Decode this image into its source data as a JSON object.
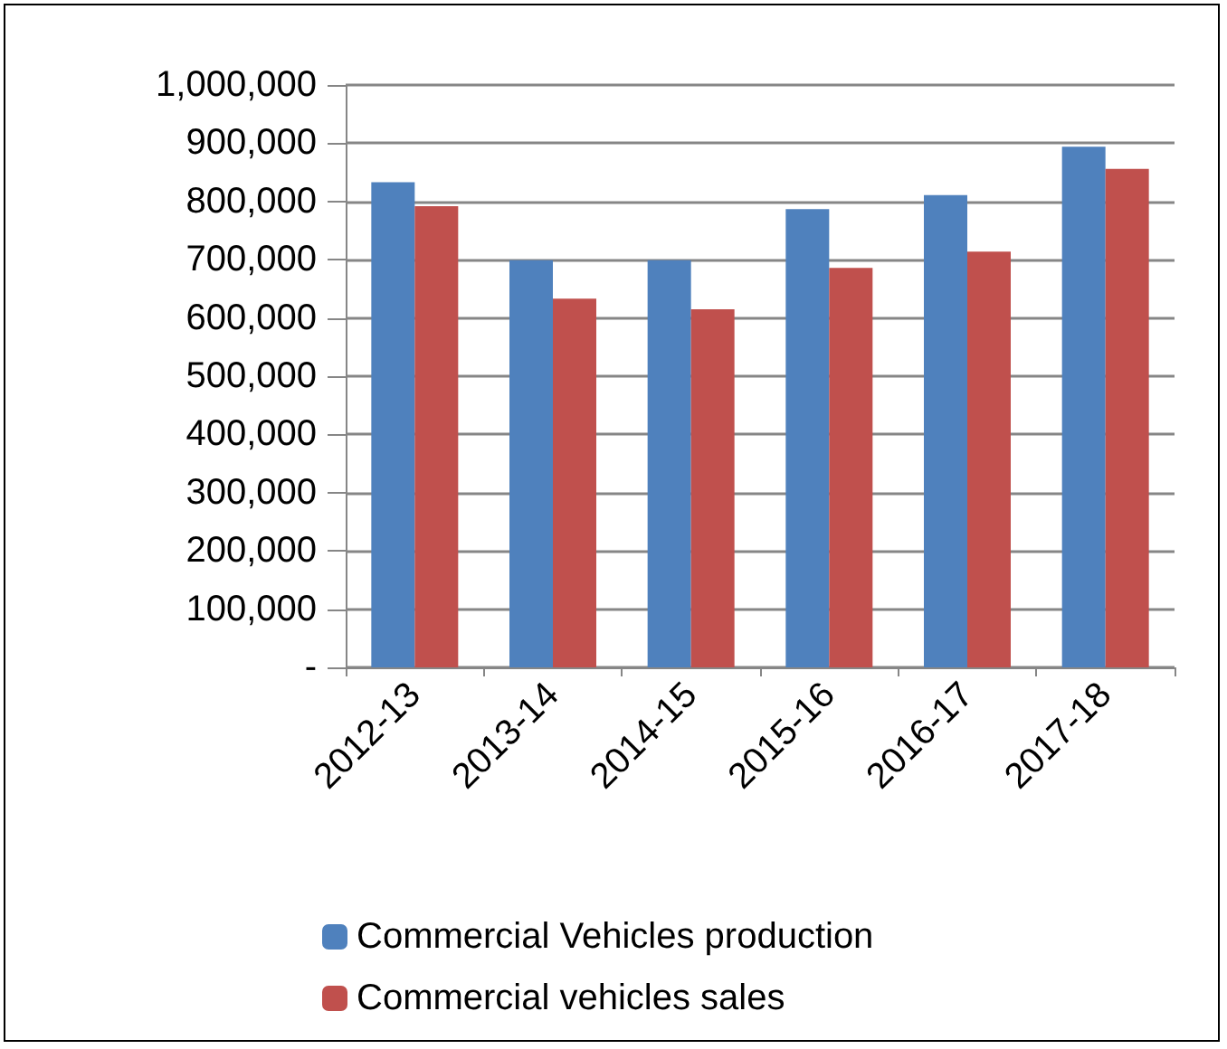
{
  "chart_data": {
    "type": "bar",
    "categories": [
      "2012-13",
      "2013-14",
      "2014-15",
      "2015-16",
      "2016-17",
      "2017-18"
    ],
    "series": [
      {
        "name": "Commercial Vehicles production",
        "color": "#4f81bd",
        "values": [
          833000,
          699000,
          699000,
          787000,
          811000,
          894000
        ]
      },
      {
        "name": "Commercial vehicles sales",
        "color": "#c0504d",
        "values": [
          792000,
          633000,
          615000,
          686000,
          714000,
          856000
        ]
      }
    ],
    "ylim": [
      0,
      1000000
    ],
    "yticks": [
      {
        "value": 0,
        "label": "-"
      },
      {
        "value": 100000,
        "label": "100,000"
      },
      {
        "value": 200000,
        "label": "200,000"
      },
      {
        "value": 300000,
        "label": "300,000"
      },
      {
        "value": 400000,
        "label": "400,000"
      },
      {
        "value": 500000,
        "label": "500,000"
      },
      {
        "value": 600000,
        "label": "600,000"
      },
      {
        "value": 700000,
        "label": "700,000"
      },
      {
        "value": 800000,
        "label": "800,000"
      },
      {
        "value": 900000,
        "label": "900,000"
      },
      {
        "value": 1000000,
        "label": "1,000,000"
      }
    ],
    "grid": "y",
    "legend": "bottom"
  }
}
